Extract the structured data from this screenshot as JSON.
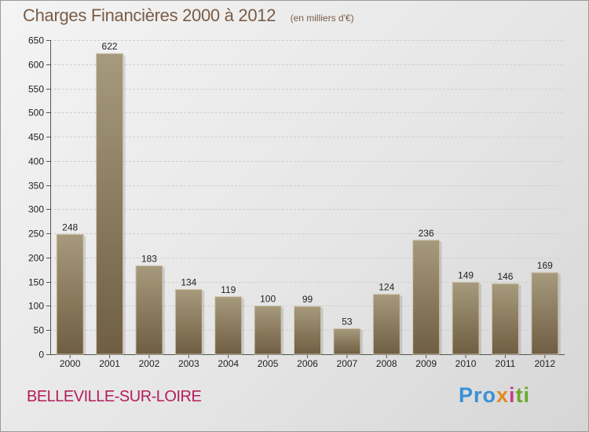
{
  "title": "Charges Financières 2000 à 2012",
  "subtitle": "(en milliers d'€)",
  "commune": "BELLEVILLE-SUR-LOIRE",
  "logo": {
    "p1": "Pro",
    "p2": "x",
    "p3": "i",
    "p4": "ti"
  },
  "colors": {
    "bar_top": "#a79a7c",
    "bar_bottom": "#6f5e42",
    "grid": "#cfcfcf",
    "title": "#7a5c46",
    "commune": "#b41d5a"
  },
  "chart_data": {
    "type": "bar",
    "categories": [
      "2000",
      "2001",
      "2002",
      "2003",
      "2004",
      "2005",
      "2006",
      "2007",
      "2008",
      "2009",
      "2010",
      "2011",
      "2012"
    ],
    "values": [
      248,
      622,
      183,
      134,
      119,
      100,
      99,
      53,
      124,
      236,
      149,
      146,
      169
    ],
    "ylim": [
      0,
      650
    ],
    "yticks": [
      0,
      50,
      100,
      150,
      200,
      250,
      300,
      350,
      400,
      450,
      500,
      550,
      600,
      650
    ],
    "grid": true
  }
}
